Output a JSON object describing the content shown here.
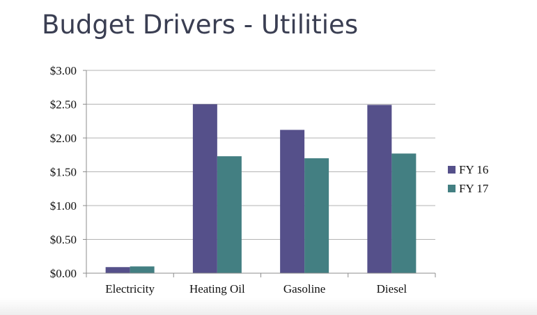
{
  "slide": {
    "title": "Budget Drivers - Utilities"
  },
  "chart_data": {
    "type": "bar",
    "title": "",
    "xlabel": "",
    "ylabel": "",
    "categories": [
      "Electricity",
      "Heating Oil",
      "Gasoline",
      "Diesel"
    ],
    "series": [
      {
        "name": "FY 16",
        "color": "#55508a",
        "values": [
          0.09,
          2.5,
          2.12,
          2.49
        ]
      },
      {
        "name": "FY 17",
        "color": "#437f82",
        "values": [
          0.1,
          1.73,
          1.7,
          1.77
        ]
      }
    ],
    "ylim": [
      0,
      3
    ],
    "yticks": [
      {
        "value": 0,
        "label": "$0.00"
      },
      {
        "value": 0.5,
        "label": "$0.50"
      },
      {
        "value": 1,
        "label": "$1.00"
      },
      {
        "value": 1.5,
        "label": "$1.50"
      },
      {
        "value": 2,
        "label": "$2.00"
      },
      {
        "value": 2.5,
        "label": "$2.50"
      },
      {
        "value": 3,
        "label": "$3.00"
      }
    ],
    "grid": true,
    "legend": "right",
    "colors": {
      "gridline": "#b3b3b3",
      "axis": "#8c8c8c"
    }
  }
}
